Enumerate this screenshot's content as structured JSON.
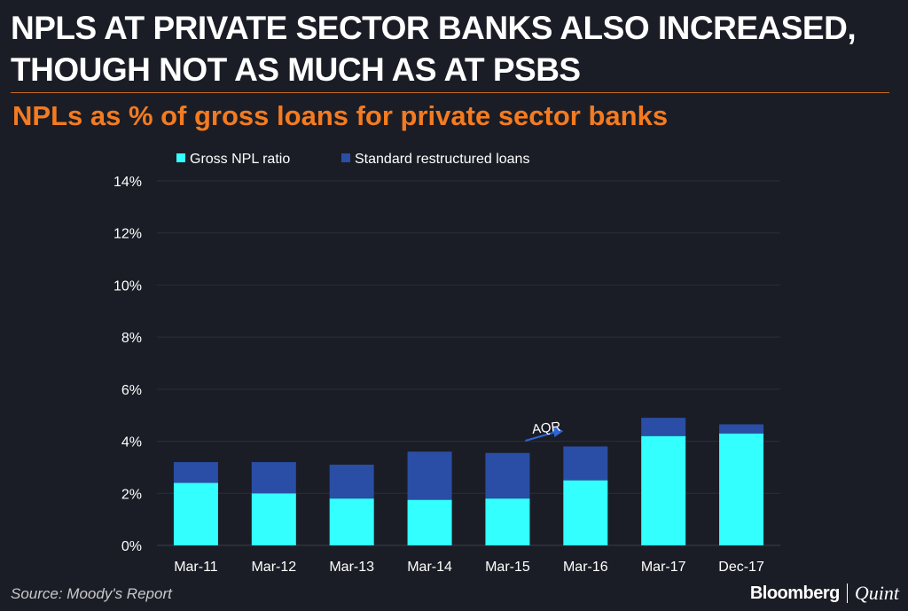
{
  "title_line1": "NPLS AT PRIVATE SECTOR BANKS ALSO INCREASED,",
  "title_line2": "THOUGH NOT AS MUCH AS AT PSBS",
  "subtitle": "NPLs as % of gross loans for private sector banks",
  "source": "Source: Moody's Report",
  "brand": {
    "name1": "Bloomberg",
    "name2": "Quint"
  },
  "colors": {
    "background": "#1b1d26",
    "gross_npl": "#33ffff",
    "restructured": "#2a4ea6",
    "subtitle": "#f47b20",
    "annotation_arrow": "#2f63d6"
  },
  "chart_data": {
    "type": "bar",
    "stacked": true,
    "categories": [
      "Mar-11",
      "Mar-12",
      "Mar-13",
      "Mar-14",
      "Mar-15",
      "Mar-16",
      "Mar-17",
      "Dec-17"
    ],
    "series": [
      {
        "name": "Gross NPL ratio",
        "values": [
          2.4,
          2.0,
          1.8,
          1.75,
          1.8,
          2.5,
          4.2,
          4.3
        ]
      },
      {
        "name": "Standard restructured loans",
        "values": [
          0.8,
          1.2,
          1.3,
          1.85,
          1.75,
          1.3,
          0.7,
          0.35
        ]
      }
    ],
    "ylim": [
      0,
      14
    ],
    "yticks": [
      "0%",
      "2%",
      "4%",
      "6%",
      "8%",
      "10%",
      "12%",
      "14%"
    ],
    "ytick_values": [
      0,
      2,
      4,
      6,
      8,
      10,
      12,
      14
    ],
    "grid": true,
    "legend_position": "top-left",
    "annotation": {
      "text": "AQR",
      "from_category": "Mar-15",
      "to_category": "Mar-16"
    }
  }
}
